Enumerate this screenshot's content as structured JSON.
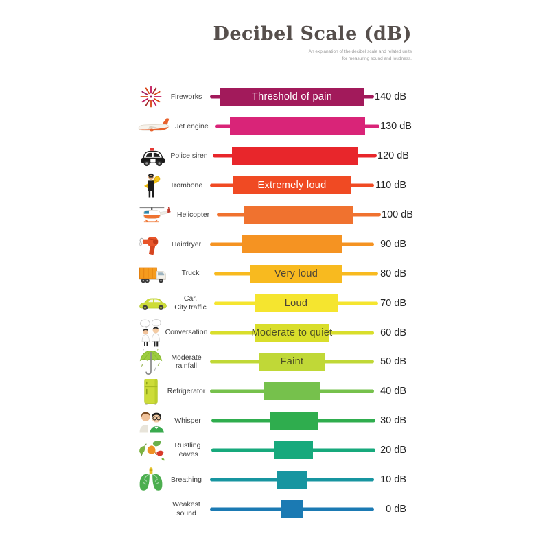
{
  "header": {
    "title": "Decibel Scale (dB)",
    "subtitle_line1": "An explanation of the decibel scale and related units",
    "subtitle_line2": "for measuring sound and loudness."
  },
  "unit": "dB",
  "rows": [
    {
      "icon": "fireworks-icon",
      "label": "Fireworks",
      "db": 140,
      "db_label": "140 dB",
      "description": "Threshold of pain",
      "bar_color": "#a21a5b",
      "desc_color": "#ffffff"
    },
    {
      "icon": "jet-engine-icon",
      "label": "Jet engine",
      "db": 130,
      "db_label": "130 dB",
      "description": "",
      "bar_color": "#d92478",
      "desc_color": "#ffffff"
    },
    {
      "icon": "police-siren-icon",
      "label": "Police siren",
      "db": 120,
      "db_label": "120 dB",
      "description": "",
      "bar_color": "#e8262b",
      "desc_color": "#ffffff"
    },
    {
      "icon": "trombone-icon",
      "label": "Trombone",
      "db": 110,
      "db_label": "110 dB",
      "description": "Extremely loud",
      "bar_color": "#f04a23",
      "desc_color": "#ffffff"
    },
    {
      "icon": "helicopter-icon",
      "label": "Helicopter",
      "db": 100,
      "db_label": "100 dB",
      "description": "",
      "bar_color": "#f0722f",
      "desc_color": "#ffffff"
    },
    {
      "icon": "hairdryer-icon",
      "label": "Hairdryer",
      "db": 90,
      "db_label": "90 dB",
      "description": "",
      "bar_color": "#f59322",
      "desc_color": "#ffffff"
    },
    {
      "icon": "truck-icon",
      "label": "Truck",
      "db": 80,
      "db_label": "80 dB",
      "description": "Very loud",
      "bar_color": "#f8ba1f",
      "desc_color": "#4c4437"
    },
    {
      "icon": "car-icon",
      "label": "Car,\nCity traffic",
      "db": 70,
      "db_label": "70 dB",
      "description": "Loud",
      "bar_color": "#f5e52f",
      "desc_color": "#4c4437"
    },
    {
      "icon": "conversation-icon",
      "label": "Conversation",
      "db": 60,
      "db_label": "60 dB",
      "description": "Moderate to quiet",
      "bar_color": "#d9de2b",
      "desc_color": "#4c4f24"
    },
    {
      "icon": "rainfall-icon",
      "label": "Moderate\nrainfall",
      "db": 50,
      "db_label": "50 dB",
      "description": "Faint",
      "bar_color": "#c0d837",
      "desc_color": "#4c4f24"
    },
    {
      "icon": "refrigerator-icon",
      "label": "Refrigerator",
      "db": 40,
      "db_label": "40 dB",
      "description": "",
      "bar_color": "#76c14c",
      "desc_color": "#ffffff"
    },
    {
      "icon": "whisper-icon",
      "label": "Whisper",
      "db": 30,
      "db_label": "30 dB",
      "description": "",
      "bar_color": "#2fad4e",
      "desc_color": "#ffffff"
    },
    {
      "icon": "leaves-icon",
      "label": "Rustling\nleaves",
      "db": 20,
      "db_label": "20 dB",
      "description": "",
      "bar_color": "#17a97c",
      "desc_color": "#ffffff"
    },
    {
      "icon": "lungs-icon",
      "label": "Breathing",
      "db": 10,
      "db_label": "10 dB",
      "description": "",
      "bar_color": "#1795a0",
      "desc_color": "#ffffff"
    },
    {
      "icon": "",
      "label": "Weakest sound",
      "db": 0,
      "db_label": "0 dB",
      "description": "",
      "bar_color": "#1b7ab3",
      "desc_color": "#ffffff"
    }
  ],
  "chart_data": {
    "type": "bar",
    "orientation": "horizontal",
    "title": "Decibel Scale (dB)",
    "subtitle": "An explanation of the decibel scale and related units for measuring sound and loudness.",
    "unit": "dB",
    "categories": [
      "Fireworks",
      "Jet engine",
      "Police siren",
      "Trombone",
      "Helicopter",
      "Hairdryer",
      "Truck",
      "Car, City traffic",
      "Conversation",
      "Moderate rainfall",
      "Refrigerator",
      "Whisper",
      "Rustling leaves",
      "Breathing",
      "Weakest sound"
    ],
    "values": [
      140,
      130,
      120,
      110,
      100,
      90,
      80,
      70,
      60,
      50,
      40,
      30,
      20,
      10,
      0
    ],
    "bar_colors": [
      "#a21a5b",
      "#d92478",
      "#e8262b",
      "#f04a23",
      "#f0722f",
      "#f59322",
      "#f8ba1f",
      "#f5e52f",
      "#d9de2b",
      "#c0d837",
      "#76c14c",
      "#2fad4e",
      "#17a97c",
      "#1795a0",
      "#1b7ab3"
    ],
    "annotations": [
      {
        "db": 140,
        "text": "Threshold of pain"
      },
      {
        "db": 110,
        "text": "Extremely loud"
      },
      {
        "db": 80,
        "text": "Very loud"
      },
      {
        "db": 70,
        "text": "Loud"
      },
      {
        "db": 60,
        "text": "Moderate to quiet"
      },
      {
        "db": 50,
        "text": "Faint"
      }
    ],
    "value_range": [
      0,
      140
    ],
    "grid": false,
    "legend": false
  }
}
